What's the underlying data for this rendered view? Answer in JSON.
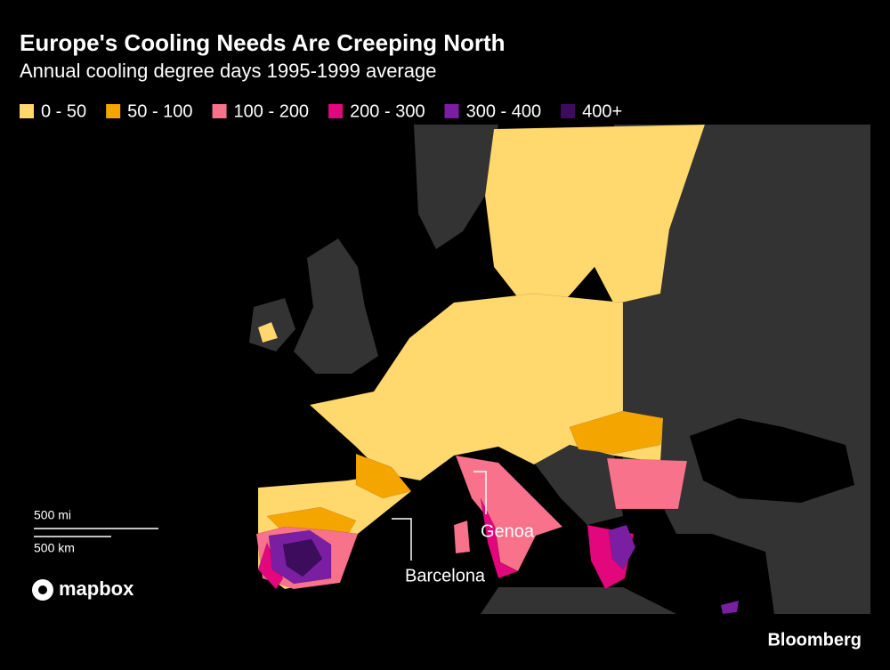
{
  "header": {
    "title": "Europe's Cooling Needs Are Creeping North",
    "subtitle": "Annual cooling degree days 1995-1999 average"
  },
  "legend": [
    {
      "label": "0 - 50",
      "color": "#ffd86e"
    },
    {
      "label": "50 - 100",
      "color": "#f5a500"
    },
    {
      "label": "100 - 200",
      "color": "#f7728a"
    },
    {
      "label": "200 - 300",
      "color": "#e2077c"
    },
    {
      "label": "300 - 400",
      "color": "#7a1fa2"
    },
    {
      "label": "400+",
      "color": "#3e0c5c"
    }
  ],
  "annotations": [
    "Barcelona",
    "Genoa"
  ],
  "scale": {
    "miles": "500 mi",
    "kilometers": "500 km"
  },
  "credits": {
    "map": "mapbox",
    "source": "Bloomberg"
  }
}
